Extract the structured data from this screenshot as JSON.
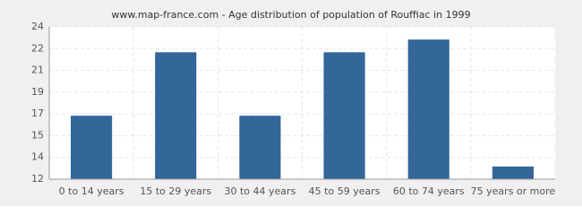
{
  "chart_data": {
    "type": "bar",
    "title": "www.map-france.com - Age distribution of population of Rouffiac in 1999",
    "categories": [
      "0 to 14 years",
      "15 to 29 years",
      "30 to 44 years",
      "45 to 59 years",
      "60 to 74 years",
      "75 years or more"
    ],
    "values": [
      17,
      22,
      17,
      22,
      23,
      13
    ],
    "color": "#336699",
    "ylim": [
      12,
      24
    ],
    "yticks": [
      12,
      {
        "value": 13.714,
        "label": "14"
      },
      {
        "value": 15.429,
        "label": "15"
      },
      {
        "value": 17.143,
        "label": "17"
      },
      {
        "value": 18.857,
        "label": "19"
      },
      {
        "value": 20.571,
        "label": "21"
      },
      {
        "value": 22.286,
        "label": "22"
      },
      24
    ],
    "grid": true
  }
}
